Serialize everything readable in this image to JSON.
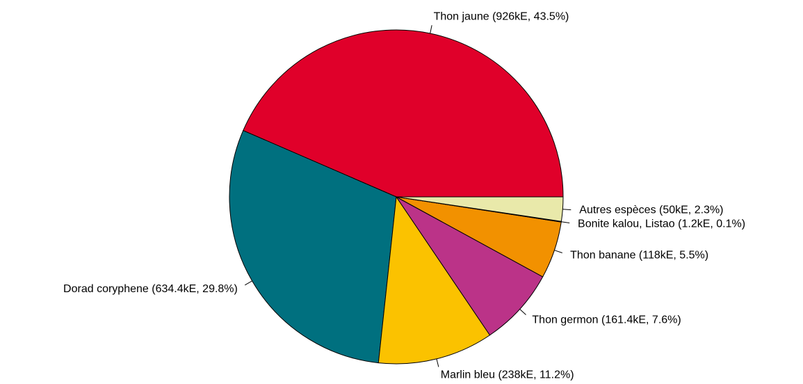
{
  "chart_data": {
    "type": "pie",
    "categories": [
      "Thon jaune (926kE, 43.5%)",
      "Dorad coryphene (634.4kE, 29.8%)",
      "Marlin bleu (238kE, 11.2%)",
      "Thon germon (161.4kE, 7.6%)",
      "Thon banane (118kE, 5.5%)",
      "Bonite kalou, Listao (1.2kE, 0.1%)",
      "Autres espèces (50kE, 2.3%)"
    ],
    "values": [
      926,
      634.4,
      238,
      161.4,
      118,
      1.2,
      50
    ],
    "colors": [
      "#e0002a",
      "#00707f",
      "#fbc200",
      "#bb3388",
      "#f29100",
      "#9a6a10",
      "#e9e9aa"
    ]
  }
}
